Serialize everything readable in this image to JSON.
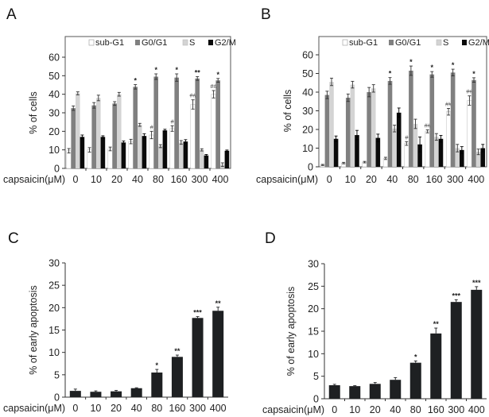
{
  "chart_data": [
    {
      "panel": "A",
      "type": "bar",
      "title": "",
      "xlabel": "capsaicin(μM)",
      "ylabel": "% of cells",
      "ylim": [
        0,
        70
      ],
      "yticks": [
        0,
        10,
        20,
        30,
        40,
        50,
        60
      ],
      "categories": [
        "0",
        "10",
        "20",
        "40",
        "80",
        "160",
        "300",
        "400"
      ],
      "legend": {
        "placement": "top",
        "entries": [
          "sub-G1",
          "G0/G1",
          "S",
          "G2/M"
        ]
      },
      "series": [
        {
          "name": "sub-G1",
          "color": "#ffffff",
          "values": [
            9.5,
            10,
            10.5,
            14.5,
            18,
            21.5,
            34.5,
            40
          ],
          "errors": [
            1.2,
            1.2,
            1,
            1.2,
            2,
            1.5,
            2.5,
            2
          ],
          "annotations": [
            "",
            "",
            "",
            "",
            "#",
            "#",
            "##",
            "##"
          ]
        },
        {
          "name": "G0/G1",
          "color": "#808080",
          "values": [
            32.5,
            34,
            35,
            44,
            49.5,
            49,
            48.5,
            47.5
          ],
          "errors": [
            1.2,
            1.5,
            1,
            1.2,
            1.5,
            2,
            1,
            1
          ],
          "annotations": [
            "",
            "",
            "",
            "*",
            "*",
            "*",
            "**",
            "*"
          ]
        },
        {
          "name": "S",
          "color": "#d4d4d4",
          "values": [
            40.5,
            38,
            40,
            23.5,
            12,
            14,
            10,
            2
          ],
          "errors": [
            0.8,
            1.5,
            1,
            0.8,
            0.8,
            1,
            0.6,
            1
          ],
          "annotations": [
            "",
            "",
            "",
            "",
            "",
            "",
            "",
            ""
          ]
        },
        {
          "name": "G2/M",
          "color": "#0a0a0a",
          "values": [
            17,
            17,
            14,
            17.5,
            20.5,
            14.5,
            7,
            9.5
          ],
          "errors": [
            1,
            0.6,
            0.8,
            1.2,
            0.6,
            1,
            0.5,
            0.4
          ],
          "annotations": [
            "",
            "",
            "",
            "",
            "",
            "",
            "",
            ""
          ]
        }
      ]
    },
    {
      "panel": "B",
      "type": "bar",
      "title": "",
      "xlabel": "capsaicin(μM)",
      "ylabel": "% of cells",
      "ylim": [
        0,
        70
      ],
      "yticks": [
        0,
        10,
        20,
        30,
        40,
        50,
        60
      ],
      "categories": [
        "0",
        "10",
        "20",
        "40",
        "80",
        "160",
        "300",
        "400"
      ],
      "legend": {
        "placement": "top",
        "entries": [
          "sub-G1",
          "G0/G1",
          "S",
          "G2/M"
        ]
      },
      "series": [
        {
          "name": "sub-G1",
          "color": "#ffffff",
          "values": [
            1,
            2,
            2.5,
            4.5,
            12.5,
            19,
            29.5,
            35.5
          ],
          "errors": [
            0.3,
            0.4,
            0.4,
            0.6,
            1,
            0.8,
            1.8,
            2.5
          ],
          "annotations": [
            "",
            "",
            "",
            "",
            "#",
            "##",
            "##",
            "##"
          ]
        },
        {
          "name": "G0/G1",
          "color": "#808080",
          "values": [
            38.5,
            37,
            40,
            46,
            51.5,
            49.5,
            50.5,
            46.5
          ],
          "errors": [
            2,
            2,
            2.5,
            1.8,
            2.5,
            1.5,
            1.8,
            1.2
          ],
          "annotations": [
            "",
            "",
            "",
            "*",
            "*",
            "*",
            "*",
            "*"
          ]
        },
        {
          "name": "S",
          "color": "#d4d4d4",
          "values": [
            45.5,
            44,
            42,
            20.5,
            23,
            16,
            10,
            8
          ],
          "errors": [
            2,
            1.8,
            2,
            1.8,
            2.5,
            1.8,
            2,
            1.5
          ],
          "annotations": [
            "",
            "",
            "",
            "",
            "",
            "",
            "",
            ""
          ]
        },
        {
          "name": "G2/M",
          "color": "#0a0a0a",
          "values": [
            15,
            17,
            15.5,
            29,
            12,
            15,
            9,
            10
          ],
          "errors": [
            1.5,
            2.5,
            2,
            2.5,
            4,
            1.8,
            1.8,
            2
          ],
          "annotations": [
            "",
            "",
            "",
            "",
            "",
            "",
            "",
            ""
          ]
        }
      ]
    },
    {
      "panel": "C",
      "type": "bar",
      "title": "",
      "xlabel": "capsaicin(μM)",
      "ylabel": "% of early apoptosis",
      "ylim": [
        0,
        30
      ],
      "yticks": [
        0,
        5,
        10,
        15,
        20,
        25,
        30
      ],
      "categories": [
        "0",
        "10",
        "20",
        "40",
        "80",
        "160",
        "300",
        "400"
      ],
      "series": [
        {
          "name": "early apoptosis",
          "color": "#1e2022",
          "values": [
            1.4,
            1.2,
            1.3,
            2.0,
            5.5,
            9.0,
            17.7,
            19.3
          ],
          "errors": [
            0.4,
            0.2,
            0.2,
            0.1,
            0.7,
            0.4,
            0.3,
            0.8
          ],
          "annotations": [
            "",
            "",
            "",
            "",
            "*",
            "**",
            "***",
            "**"
          ]
        }
      ]
    },
    {
      "panel": "D",
      "type": "bar",
      "title": "",
      "xlabel": "capsaicin(μM)",
      "ylabel": "% of early apoptosis",
      "ylim": [
        0,
        30
      ],
      "yticks": [
        0,
        5,
        10,
        15,
        20,
        25,
        30
      ],
      "categories": [
        "0",
        "10",
        "20",
        "40",
        "80",
        "160",
        "300",
        "400"
      ],
      "series": [
        {
          "name": "early apoptosis",
          "color": "#1e2022",
          "values": [
            3.0,
            2.8,
            3.3,
            4.2,
            8.0,
            14.5,
            21.5,
            24.2
          ],
          "errors": [
            0.2,
            0.1,
            0.3,
            0.5,
            0.4,
            1.2,
            0.5,
            0.7
          ],
          "annotations": [
            "",
            "",
            "",
            "",
            "*",
            "**",
            "***",
            "***"
          ]
        }
      ]
    }
  ]
}
